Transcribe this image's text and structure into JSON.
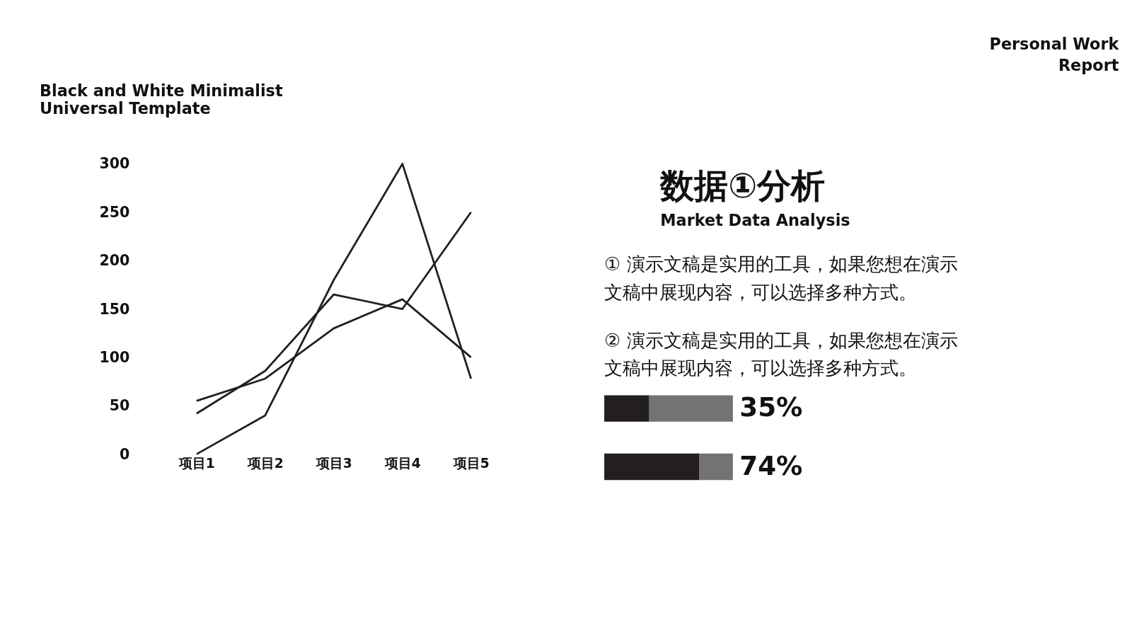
{
  "chart_data": [
    {
      "type": "line",
      "title": "Black and White Minimalist Universal Template",
      "annotations": [
        "Personal Work Report"
      ],
      "categories": [
        "项目1",
        "项目2",
        "项目3",
        "项目4",
        "项目5"
      ],
      "series": [
        {
          "color": "#231f20",
          "values": [
            0,
            40,
            180,
            300,
            78
          ]
        },
        {
          "color": "#231f20",
          "values": [
            42,
            86,
            165,
            150,
            250
          ]
        },
        {
          "color": "#231f20",
          "values": [
            55,
            78,
            130,
            160,
            100
          ]
        }
      ],
      "ylim": [
        0,
        300
      ],
      "yticks": [
        0,
        50,
        100,
        150,
        200,
        250,
        300
      ],
      "grid": false,
      "legend": false,
      "marker": "none",
      "line_style": "solid"
    },
    {
      "type": "other",
      "title": "数据①分析",
      "subtitle": "Market Data Analysis",
      "annotations": [
        "① 演示文稿是实用的工具，如果您想在演示文稿中展现内容，可以选择多种方式。",
        "② 演示文稿是实用的工具，如果您想在演示文稿中展现内容，可以选择多种方式。"
      ]
    },
    {
      "type": "bar",
      "orientation": "horizontal",
      "stacked": true,
      "categories": [
        null,
        null
      ],
      "series": [
        {
          "color": "#231f20",
          "values": [
            35,
            74
          ],
          "value_labels": [
            "35%",
            "74%"
          ]
        },
        {
          "color": "#737373",
          "values": [
            65,
            26
          ]
        }
      ],
      "xlim": [
        0,
        100
      ],
      "tick_labels": false
    }
  ]
}
